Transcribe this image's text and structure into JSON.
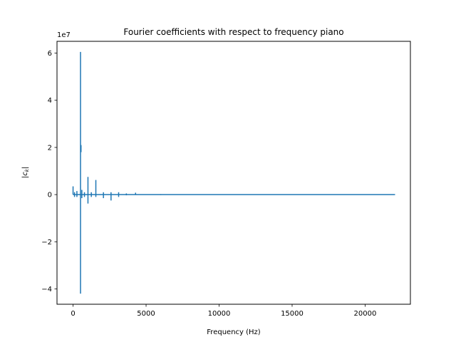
{
  "chart_data": {
    "type": "line",
    "title": "Fourier coefficients with respect to frequency piano",
    "xlabel": "Frequency (Hz)",
    "ylabel": "|c_k|",
    "y_scale_label": "1e7",
    "xlim": [
      -1100,
      23100
    ],
    "ylim": [
      -4.65,
      6.5
    ],
    "x_ticks": [
      0,
      5000,
      10000,
      15000,
      20000
    ],
    "x_tick_labels": [
      "0",
      "5000",
      "10000",
      "15000",
      "20000"
    ],
    "y_ticks": [
      -4,
      -2,
      0,
      2,
      4,
      6
    ],
    "y_tick_labels": [
      "−4",
      "−2",
      "0",
      "2",
      "4",
      "6"
    ],
    "grid": false,
    "series_color": "#1f77b4",
    "baseline": {
      "x_start": 0,
      "x_end": 22050,
      "y": 0
    },
    "spikes": [
      {
        "x": 0,
        "ymin": 0,
        "ymax": 0.35
      },
      {
        "x": 100,
        "ymin": -0.1,
        "ymax": 0.1
      },
      {
        "x": 262,
        "ymin": -0.1,
        "ymax": 0.15
      },
      {
        "x": 510,
        "ymin": -4.2,
        "ymax": 6.05
      },
      {
        "x": 545,
        "ymin": 1.8,
        "ymax": 2.1
      },
      {
        "x": 600,
        "ymin": -0.15,
        "ymax": 0.2
      },
      {
        "x": 780,
        "ymin": -0.1,
        "ymax": 0.1
      },
      {
        "x": 1020,
        "ymin": -0.38,
        "ymax": 0.75
      },
      {
        "x": 1250,
        "ymin": -0.1,
        "ymax": 0.1
      },
      {
        "x": 1560,
        "ymin": -0.1,
        "ymax": 0.62
      },
      {
        "x": 2080,
        "ymin": -0.15,
        "ymax": 0.1
      },
      {
        "x": 2600,
        "ymin": -0.25,
        "ymax": 0.1
      },
      {
        "x": 3120,
        "ymin": -0.1,
        "ymax": 0.1
      },
      {
        "x": 3650,
        "ymin": -0.03,
        "ymax": 0.05
      },
      {
        "x": 4280,
        "ymin": 0,
        "ymax": 0.08
      },
      {
        "x": 6000,
        "ymin": -0.02,
        "ymax": 0.02
      }
    ]
  }
}
